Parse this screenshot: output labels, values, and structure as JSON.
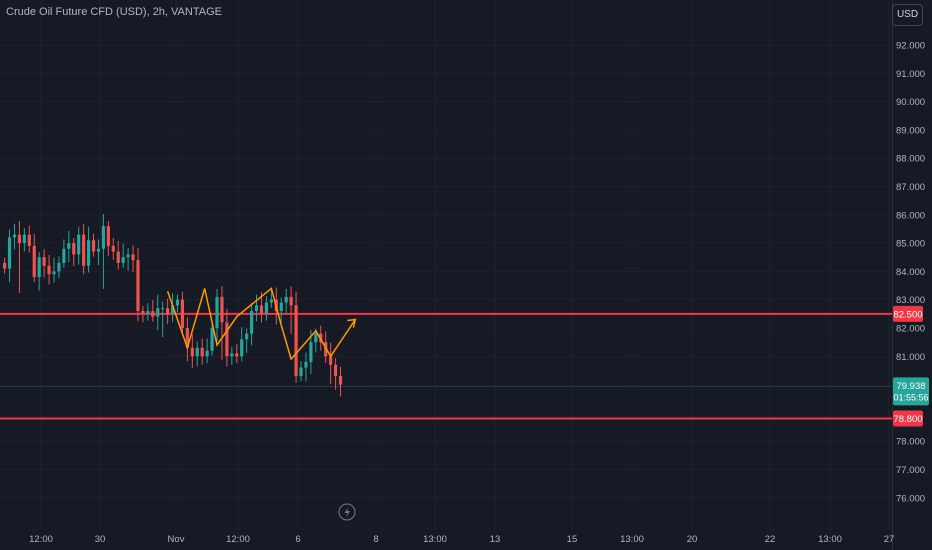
{
  "header": {
    "title": "Crude Oil Future CFD (USD), 2h, VANTAGE",
    "currency_button": "USD"
  },
  "colors": {
    "background": "#161a25",
    "up": "#26a69a",
    "down": "#ef5350",
    "level_line": "#f23645",
    "pattern": "#ff9800",
    "last_price_line": "#2a3d3b",
    "axis_text": "#b2b5be"
  },
  "icons": [
    "lightning-icon"
  ],
  "chart_data": {
    "type": "candlestick",
    "symbol": "Crude Oil Future CFD (USD)",
    "timeframe": "2h",
    "source": "VANTAGE",
    "ylim": [
      75.6,
      93.1
    ],
    "y_ticks": [
      "92.000",
      "91.000",
      "90.000",
      "89.000",
      "88.000",
      "87.000",
      "86.000",
      "85.000",
      "84.000",
      "83.000",
      "82.000",
      "81.000",
      "78.000",
      "77.000",
      "76.000"
    ],
    "x_ticks": [
      "12:00",
      "30",
      "Nov",
      "12:00",
      "6",
      "8",
      "13:00",
      "13",
      "15",
      "13:00",
      "20",
      "22",
      "13:00",
      "27"
    ],
    "horizontal_levels": [
      {
        "price": 82.5,
        "label": "82.500"
      },
      {
        "price": 78.8,
        "label": "78.800"
      }
    ],
    "last_price": {
      "price": 79.938,
      "label": "79.938",
      "countdown": "01:55:56"
    },
    "closes": [
      84.1,
      85.2,
      85.3,
      85.0,
      85.3,
      84.9,
      83.8,
      84.5,
      84.2,
      83.9,
      84.0,
      84.3,
      84.8,
      85.0,
      84.6,
      85.3,
      84.2,
      85.1,
      84.7,
      84.8,
      85.6,
      84.9,
      84.7,
      84.3,
      84.5,
      84.6,
      84.4,
      82.6,
      82.5,
      82.6,
      82.4,
      82.7,
      82.7,
      82.5,
      82.8,
      83.0,
      82.0,
      81.3,
      81.0,
      81.3,
      81.0,
      81.2,
      82.0,
      83.1,
      82.2,
      81.0,
      81.1,
      81.0,
      81.6,
      81.8,
      82.6,
      82.8,
      82.5,
      82.9,
      83.0,
      82.6,
      82.9,
      83.1,
      82.8,
      80.3,
      80.6,
      80.8,
      81.5,
      81.8,
      81.5,
      81.0,
      80.7,
      80.3,
      80.0
    ]
  }
}
